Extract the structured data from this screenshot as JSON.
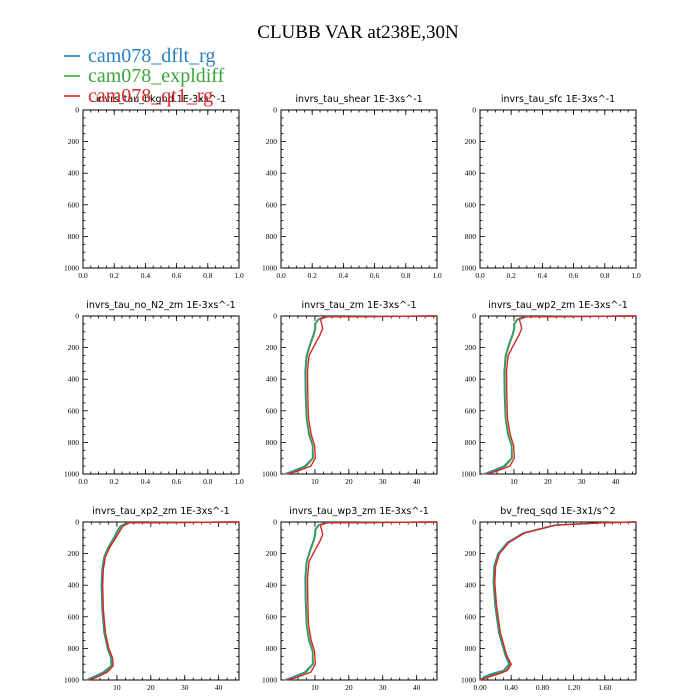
{
  "figure": {
    "title": "CLUBB VAR at238E,30N"
  },
  "legend": [
    {
      "label": "cam078_dflt_rg",
      "color": "#2a7fbf"
    },
    {
      "label": "cam078_expldiff",
      "color": "#3aa63a"
    },
    {
      "label": "cam078_qt1_rg",
      "color": "#d62828"
    }
  ],
  "chart_data": [
    {
      "type": "line",
      "title": "invrs_tau_bkgnd",
      "units": "1E-3xs^-1",
      "xlim": [
        0,
        1
      ],
      "ylim": [
        0,
        1000
      ],
      "y_reversed": true,
      "xticks": [
        0.0,
        0.2,
        0.4,
        0.6,
        0.8,
        1.0
      ],
      "xtick_labels": [
        "0.0",
        "0.2",
        "0.4",
        "0.6",
        "0.8",
        "1.0"
      ],
      "yticks": [
        0,
        200,
        400,
        600,
        800,
        1000
      ],
      "ytick_labels": [
        "0",
        "200",
        "400",
        "600",
        "800",
        "1000"
      ],
      "series": []
    },
    {
      "type": "line",
      "title": "invrs_tau_shear",
      "units": "1E-3xs^-1",
      "xlim": [
        0,
        1
      ],
      "ylim": [
        0,
        1000
      ],
      "y_reversed": true,
      "xticks": [
        0.0,
        0.2,
        0.4,
        0.6,
        0.8,
        1.0
      ],
      "xtick_labels": [
        "0.0",
        "0.2",
        "0.4",
        "0.6",
        "0.8",
        "1.0"
      ],
      "yticks": [
        0,
        200,
        400,
        600,
        800,
        1000
      ],
      "ytick_labels": [
        "0",
        "200",
        "400",
        "600",
        "800",
        "1000"
      ],
      "series": []
    },
    {
      "type": "line",
      "title": "invrs_tau_sfc",
      "units": "1E-3xs^-1",
      "xlim": [
        0,
        1
      ],
      "ylim": [
        0,
        1000
      ],
      "y_reversed": true,
      "xticks": [
        0.0,
        0.2,
        0.4,
        0.6,
        0.8,
        1.0
      ],
      "xtick_labels": [
        "0.0",
        "0.2",
        "0.4",
        "0.6",
        "0.8",
        "1.0"
      ],
      "yticks": [
        0,
        200,
        400,
        600,
        800,
        1000
      ],
      "ytick_labels": [
        "0",
        "200",
        "400",
        "600",
        "800",
        "1000"
      ],
      "series": []
    },
    {
      "type": "line",
      "title": "invrs_tau_no_N2_zm",
      "units": "1E-3xs^-1",
      "xlim": [
        0,
        1
      ],
      "ylim": [
        0,
        1000
      ],
      "y_reversed": true,
      "xticks": [
        0.0,
        0.2,
        0.4,
        0.6,
        0.8,
        1.0
      ],
      "xtick_labels": [
        "0.0",
        "0.2",
        "0.4",
        "0.6",
        "0.8",
        "1.0"
      ],
      "yticks": [
        0,
        200,
        400,
        600,
        800,
        1000
      ],
      "ytick_labels": [
        "0",
        "200",
        "400",
        "600",
        "800",
        "1000"
      ],
      "series": []
    },
    {
      "type": "line",
      "title": "invrs_tau_zm",
      "units": "1E-3xs^-1",
      "xlim": [
        0,
        46
      ],
      "ylim": [
        0,
        1000
      ],
      "y_reversed": true,
      "xticks": [
        10,
        20,
        30,
        40
      ],
      "xtick_labels": [
        "10",
        "20",
        "30",
        "40"
      ],
      "yticks": [
        0,
        200,
        400,
        600,
        800,
        1000
      ],
      "ytick_labels": [
        "0",
        "200",
        "400",
        "600",
        "800",
        "1000"
      ],
      "series": [
        {
          "name": "cam078_dflt_rg",
          "x": [
            46,
            13,
            11,
            10,
            10,
            9.5,
            8.5,
            7.5,
            7.1,
            7.2,
            7.5,
            8.2,
            9.3,
            9.3,
            7.0,
            3.0,
            1.0
          ],
          "y": [
            0,
            5,
            20,
            50,
            80,
            120,
            180,
            250,
            350,
            500,
            650,
            750,
            820,
            900,
            950,
            985,
            1000
          ]
        },
        {
          "name": "cam078_expldiff",
          "x": [
            46,
            13.3,
            11.2,
            10.2,
            10.2,
            9.7,
            8.7,
            7.7,
            7.3,
            7.4,
            7.6,
            8.4,
            9.4,
            9.5,
            7.5,
            4.0,
            1.5
          ],
          "y": [
            0,
            5,
            20,
            50,
            80,
            120,
            180,
            250,
            350,
            500,
            650,
            750,
            820,
            900,
            950,
            985,
            1000
          ]
        },
        {
          "name": "cam078_qt1_rg",
          "x": [
            46,
            13.6,
            11.6,
            12.0,
            12.3,
            11.5,
            10.0,
            8.3,
            7.8,
            7.9,
            8.1,
            8.9,
            9.9,
            10.1,
            8.8,
            4.5,
            1.8
          ],
          "y": [
            0,
            5,
            20,
            50,
            80,
            120,
            180,
            250,
            350,
            500,
            650,
            750,
            820,
            900,
            950,
            985,
            1000
          ]
        }
      ]
    },
    {
      "type": "line",
      "title": "invrs_tau_wp2_zm",
      "units": "1E-3xs^-1",
      "xlim": [
        0,
        46
      ],
      "ylim": [
        0,
        1000
      ],
      "y_reversed": true,
      "xticks": [
        10,
        20,
        30,
        40
      ],
      "xtick_labels": [
        "10",
        "20",
        "30",
        "40"
      ],
      "yticks": [
        0,
        200,
        400,
        600,
        800,
        1000
      ],
      "ytick_labels": [
        "0",
        "200",
        "400",
        "600",
        "800",
        "1000"
      ],
      "series": [
        {
          "name": "cam078_dflt_rg",
          "x": [
            46,
            13,
            11,
            10,
            10,
            9.5,
            8.5,
            7.5,
            7.1,
            7.2,
            7.5,
            8.2,
            9.3,
            9.3,
            7.0,
            3.0,
            1.0
          ],
          "y": [
            0,
            5,
            20,
            50,
            80,
            120,
            180,
            250,
            350,
            500,
            650,
            750,
            820,
            900,
            950,
            985,
            1000
          ]
        },
        {
          "name": "cam078_expldiff",
          "x": [
            46,
            13.3,
            11.2,
            10.2,
            10.2,
            9.7,
            8.7,
            7.7,
            7.3,
            7.4,
            7.6,
            8.4,
            9.4,
            9.5,
            7.5,
            4.0,
            1.5
          ],
          "y": [
            0,
            5,
            20,
            50,
            80,
            120,
            180,
            250,
            350,
            500,
            650,
            750,
            820,
            900,
            950,
            985,
            1000
          ]
        },
        {
          "name": "cam078_qt1_rg",
          "x": [
            46,
            13.6,
            11.6,
            12.0,
            12.3,
            11.5,
            10.0,
            8.3,
            7.8,
            7.9,
            8.1,
            8.9,
            9.9,
            10.1,
            8.8,
            4.5,
            1.8
          ],
          "y": [
            0,
            5,
            20,
            50,
            80,
            120,
            180,
            250,
            350,
            500,
            650,
            750,
            820,
            900,
            950,
            985,
            1000
          ]
        }
      ]
    },
    {
      "type": "line",
      "title": "invrs_tau_xp2_zm",
      "units": "1E-3xs^-1",
      "xlim": [
        0,
        46
      ],
      "ylim": [
        0,
        1000
      ],
      "y_reversed": true,
      "xticks": [
        10,
        20,
        30,
        40
      ],
      "xtick_labels": [
        "10",
        "20",
        "30",
        "40"
      ],
      "yticks": [
        0,
        200,
        400,
        600,
        800,
        1000
      ],
      "ytick_labels": [
        "0",
        "200",
        "400",
        "600",
        "800",
        "1000"
      ],
      "series": [
        {
          "name": "cam078_dflt_rg",
          "x": [
            46,
            13,
            11,
            10,
            8.8,
            7.4,
            6.2,
            5.6,
            5.4,
            5.6,
            6.2,
            7.2,
            8.2,
            8.3,
            6.0,
            2.5,
            1.0
          ],
          "y": [
            0,
            5,
            25,
            60,
            110,
            160,
            220,
            300,
            400,
            550,
            700,
            800,
            860,
            910,
            950,
            985,
            1000
          ]
        },
        {
          "name": "cam078_expldiff",
          "x": [
            46,
            13.3,
            11.3,
            10.3,
            9.0,
            7.6,
            6.4,
            5.8,
            5.6,
            5.8,
            6.4,
            7.4,
            8.4,
            8.5,
            6.6,
            3.2,
            1.4
          ],
          "y": [
            0,
            5,
            25,
            60,
            110,
            160,
            220,
            300,
            400,
            550,
            700,
            800,
            860,
            910,
            950,
            985,
            1000
          ]
        },
        {
          "name": "cam078_qt1_rg",
          "x": [
            46,
            13.7,
            11.8,
            10.8,
            9.4,
            7.9,
            6.6,
            6.0,
            5.8,
            6.0,
            6.6,
            7.6,
            8.7,
            8.9,
            7.2,
            3.8,
            1.7
          ],
          "y": [
            0,
            5,
            25,
            60,
            110,
            160,
            220,
            300,
            400,
            550,
            700,
            800,
            860,
            910,
            950,
            985,
            1000
          ]
        }
      ]
    },
    {
      "type": "line",
      "title": "invrs_tau_wp3_zm",
      "units": "1E-3xs^-1",
      "xlim": [
        0,
        46
      ],
      "ylim": [
        0,
        1000
      ],
      "y_reversed": true,
      "xticks": [
        10,
        20,
        30,
        40
      ],
      "xtick_labels": [
        "10",
        "20",
        "30",
        "40"
      ],
      "yticks": [
        0,
        200,
        400,
        600,
        800,
        1000
      ],
      "ytick_labels": [
        "0",
        "200",
        "400",
        "600",
        "800",
        "1000"
      ],
      "series": [
        {
          "name": "cam078_dflt_rg",
          "x": [
            46,
            13,
            11,
            10,
            10,
            9.5,
            8.5,
            7.5,
            7.1,
            7.2,
            7.5,
            8.2,
            9.3,
            9.3,
            7.0,
            3.0,
            1.0
          ],
          "y": [
            0,
            5,
            20,
            50,
            80,
            120,
            180,
            250,
            350,
            500,
            650,
            750,
            820,
            900,
            950,
            985,
            1000
          ]
        },
        {
          "name": "cam078_expldiff",
          "x": [
            46,
            13.3,
            11.2,
            10.2,
            10.2,
            9.7,
            8.7,
            7.7,
            7.3,
            7.4,
            7.6,
            8.4,
            9.4,
            9.5,
            7.5,
            4.0,
            1.5
          ],
          "y": [
            0,
            5,
            20,
            50,
            80,
            120,
            180,
            250,
            350,
            500,
            650,
            750,
            820,
            900,
            950,
            985,
            1000
          ]
        },
        {
          "name": "cam078_qt1_rg",
          "x": [
            46,
            13.6,
            11.6,
            12.0,
            12.3,
            11.5,
            10.0,
            8.3,
            7.8,
            7.9,
            8.1,
            8.9,
            9.9,
            10.1,
            8.8,
            4.5,
            1.8
          ],
          "y": [
            0,
            5,
            20,
            50,
            80,
            120,
            180,
            250,
            350,
            500,
            650,
            750,
            820,
            900,
            950,
            985,
            1000
          ]
        }
      ]
    },
    {
      "type": "line",
      "title": "bv_freq_sqd",
      "units": "1E-3x1/s^2",
      "xlim": [
        0,
        2.0
      ],
      "ylim": [
        0,
        1000
      ],
      "y_reversed": true,
      "xticks": [
        0.0,
        0.4,
        0.8,
        1.2,
        1.6
      ],
      "xtick_labels": [
        "0.00",
        "0.40",
        "0.80",
        "1.20",
        "1.60"
      ],
      "yticks": [
        0,
        200,
        400,
        600,
        800,
        1000
      ],
      "ytick_labels": [
        "0",
        "200",
        "400",
        "600",
        "800",
        "1000"
      ],
      "series": [
        {
          "name": "cam078_dflt_rg",
          "x": [
            1.99,
            1.55,
            0.95,
            0.55,
            0.35,
            0.23,
            0.18,
            0.17,
            0.19,
            0.24,
            0.32,
            0.37,
            0.3,
            0.15,
            0.05,
            0.0
          ],
          "y": [
            0,
            5,
            20,
            70,
            130,
            200,
            280,
            380,
            520,
            700,
            840,
            900,
            940,
            960,
            980,
            1000
          ]
        },
        {
          "name": "cam078_expldiff",
          "x": [
            1.99,
            1.56,
            0.96,
            0.56,
            0.36,
            0.24,
            0.19,
            0.18,
            0.2,
            0.25,
            0.33,
            0.39,
            0.33,
            0.2,
            0.08,
            0.0
          ],
          "y": [
            0,
            5,
            20,
            70,
            130,
            200,
            280,
            380,
            520,
            700,
            840,
            900,
            940,
            960,
            980,
            1000
          ]
        },
        {
          "name": "cam078_qt1_rg",
          "x": [
            1.99,
            1.57,
            0.97,
            0.57,
            0.37,
            0.25,
            0.2,
            0.19,
            0.21,
            0.26,
            0.34,
            0.4,
            0.35,
            0.25,
            0.12,
            0.0
          ],
          "y": [
            0,
            5,
            20,
            70,
            130,
            200,
            280,
            380,
            520,
            700,
            840,
            900,
            940,
            960,
            980,
            1000
          ]
        }
      ]
    }
  ]
}
